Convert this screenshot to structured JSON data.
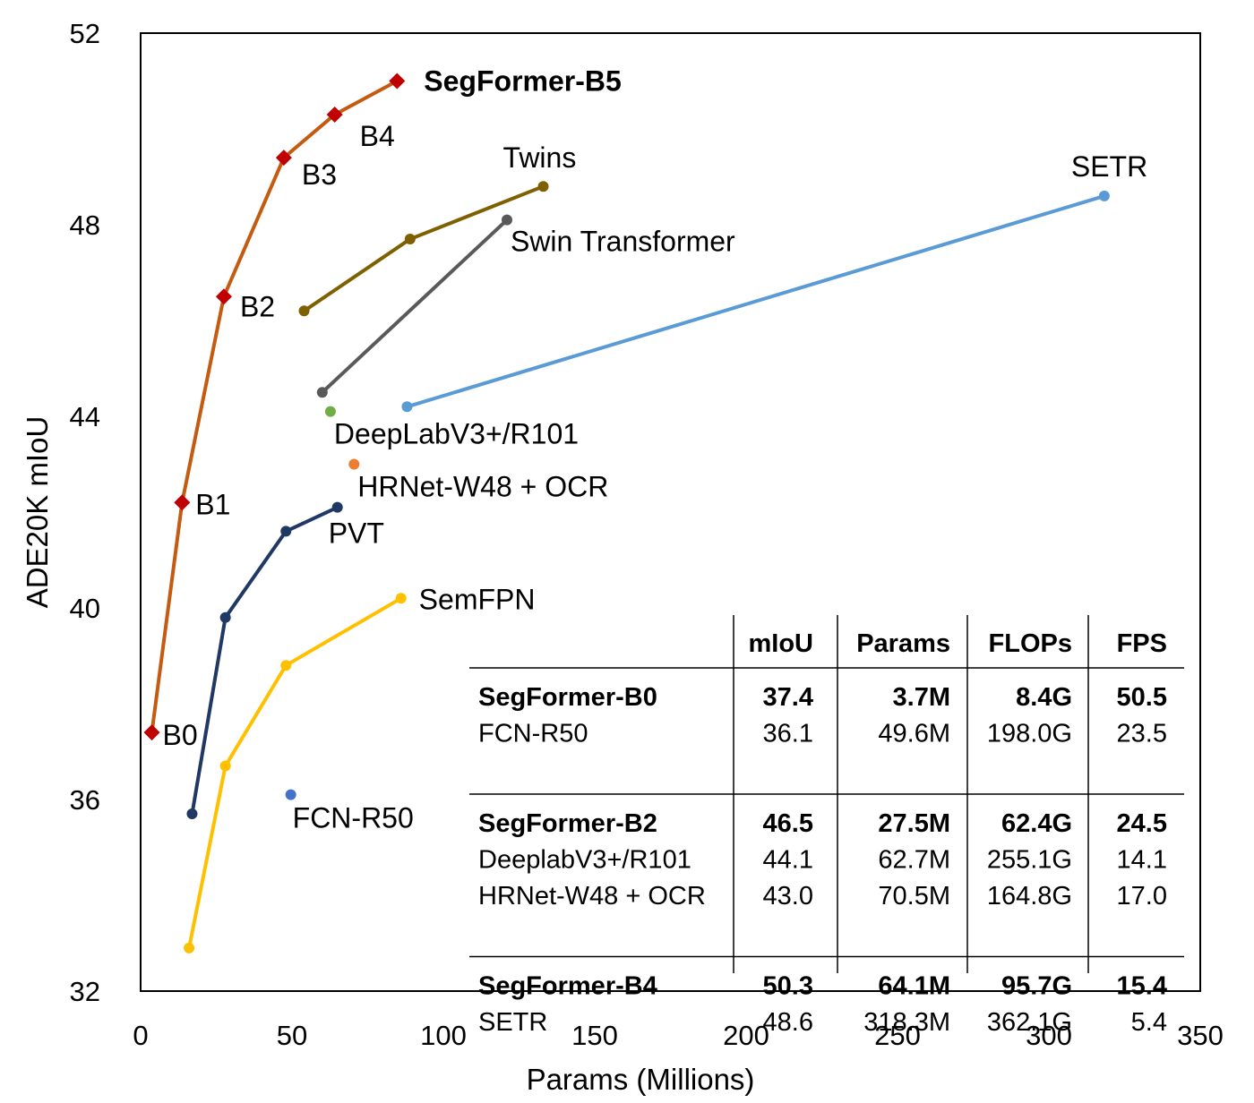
{
  "chart_data": {
    "type": "line",
    "xlabel": "Params (Millions)",
    "ylabel": "ADE20K mIoU",
    "xlim": [
      0,
      350
    ],
    "ylim": [
      32,
      52
    ],
    "x_ticks": [
      "0",
      "50",
      "100",
      "150",
      "200",
      "250",
      "300",
      "350"
    ],
    "y_ticks": [
      "32",
      "36",
      "40",
      "44",
      "48",
      "52"
    ],
    "grid": false,
    "series": [
      {
        "name": "SegFormer",
        "color": "#C55A11",
        "marker_color": "#C00000",
        "marker": "diamond",
        "x": [
          3.7,
          13.7,
          27.5,
          47.3,
          64.1,
          84.7
        ],
        "y": [
          37.4,
          42.2,
          46.5,
          49.4,
          50.3,
          51.0
        ],
        "point_labels": [
          "B0",
          "B1",
          "B2",
          "B3",
          "B4",
          "SegFormer-B5"
        ]
      },
      {
        "name": "Twins",
        "color": "#7F6000",
        "marker": "circle",
        "x": [
          54,
          89,
          133
        ],
        "y": [
          46.2,
          47.7,
          48.8
        ]
      },
      {
        "name": "Swin Transformer",
        "color": "#595959",
        "marker": "circle",
        "x": [
          60,
          121
        ],
        "y": [
          44.5,
          48.1
        ]
      },
      {
        "name": "SETR",
        "color": "#5B9BD5",
        "marker": "circle",
        "x": [
          88,
          318.3
        ],
        "y": [
          44.2,
          48.6
        ]
      },
      {
        "name": "DeepLabV3+/R101",
        "color": "#70AD47",
        "marker": "circle",
        "x": [
          62.7
        ],
        "y": [
          44.1
        ]
      },
      {
        "name": "HRNet-W48 + OCR",
        "color": "#ED7D31",
        "marker": "circle",
        "x": [
          70.5
        ],
        "y": [
          43.0
        ]
      },
      {
        "name": "PVT",
        "color": "#203864",
        "marker": "circle",
        "x": [
          17,
          28,
          48,
          65
        ],
        "y": [
          35.7,
          39.8,
          41.6,
          42.1
        ]
      },
      {
        "name": "SemFPN",
        "color": "#FFC000",
        "marker": "circle",
        "x": [
          16,
          28,
          48,
          86
        ],
        "y": [
          32.9,
          36.7,
          38.8,
          40.2
        ]
      },
      {
        "name": "FCN-R50",
        "color": "#4472C4",
        "marker": "circle",
        "x": [
          49.6
        ],
        "y": [
          36.1
        ]
      }
    ],
    "table": {
      "columns": [
        "mIoU",
        "Params",
        "FLOPs",
        "FPS"
      ],
      "groups": [
        {
          "rows": [
            {
              "name": "SegFormer-B0",
              "bold": true,
              "values": [
                "37.4",
                "3.7M",
                "8.4G",
                "50.5"
              ]
            },
            {
              "name": "FCN-R50",
              "bold": false,
              "values": [
                "36.1",
                "49.6M",
                "198.0G",
                "23.5"
              ]
            }
          ]
        },
        {
          "rows": [
            {
              "name": "SegFormer-B2",
              "bold": true,
              "values": [
                "46.5",
                "27.5M",
                "62.4G",
                "24.5"
              ]
            },
            {
              "name": "DeeplabV3+/R101",
              "bold": false,
              "values": [
                "44.1",
                "62.7M",
                "255.1G",
                "14.1"
              ]
            },
            {
              "name": "HRNet-W48 + OCR",
              "bold": false,
              "values": [
                "43.0",
                "70.5M",
                "164.8G",
                "17.0"
              ]
            }
          ]
        },
        {
          "rows": [
            {
              "name": "SegFormer-B4",
              "bold": true,
              "values": [
                "50.3",
                "64.1M",
                "95.7G",
                "15.4"
              ]
            },
            {
              "name": "SETR",
              "bold": false,
              "values": [
                "48.6",
                "318.3M",
                "362.1G",
                "5.4"
              ]
            }
          ]
        }
      ]
    }
  }
}
